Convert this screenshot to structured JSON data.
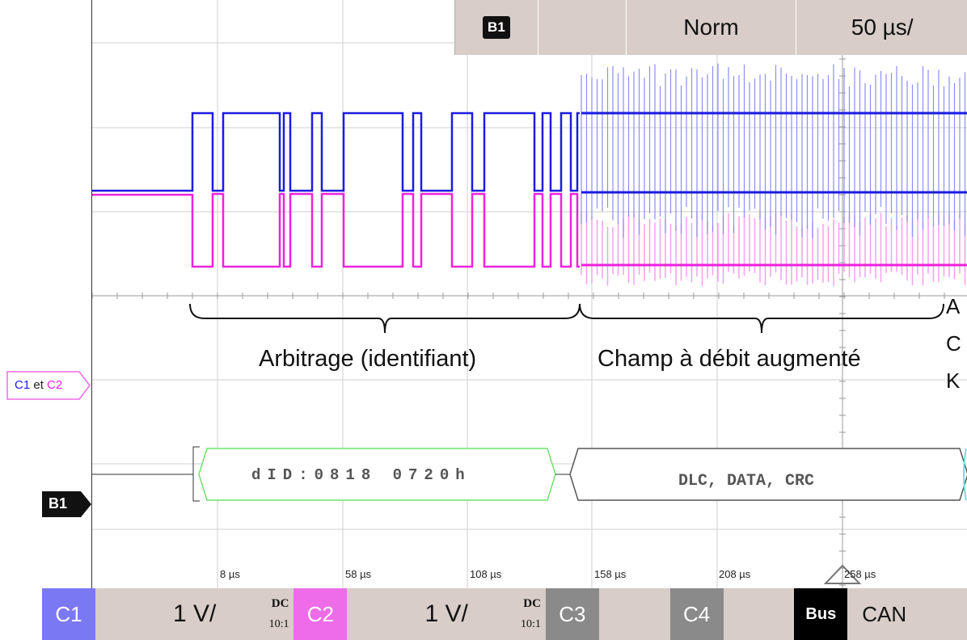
{
  "top_bar": {
    "trigger_source": "B1",
    "empty": "",
    "trigger_mode": "Norm",
    "timebase": "50 µs/"
  },
  "side_label": {
    "c1": "C1",
    "et": "et",
    "c2": "C2"
  },
  "bus_marker": "B1",
  "annotations": {
    "arbitration": "Arbitrage (identifiant)",
    "data_phase": "Champ à débit augmenté",
    "ack": [
      "A",
      "C",
      "K"
    ]
  },
  "decode": {
    "frame_id": "dID:0818 0720h",
    "data_fields": "DLC, DATA, CRC"
  },
  "time_labels": [
    "8 µs",
    "58 µs",
    "108 µs",
    "158 µs",
    "208 µs",
    "258 µs"
  ],
  "channels": [
    {
      "tag": "C1",
      "scale": "1 V/",
      "coupling": "DC",
      "probe": "10:1",
      "color": "#7b78f4"
    },
    {
      "tag": "C2",
      "scale": "1 V/",
      "coupling": "DC",
      "probe": "10:1",
      "color": "#ee6ce8"
    },
    {
      "tag": "C3",
      "scale": "",
      "color": "#8a8a8a"
    },
    {
      "tag": "C4",
      "scale": "",
      "color": "#8a8a8a"
    }
  ],
  "bus": {
    "tag": "Bus",
    "protocol": "CAN"
  },
  "colors": {
    "c1_trace": "#1c1ce0",
    "c2_trace": "#ee22dd",
    "decode_id_border": "#6fe06f",
    "decode_data_border": "#555555",
    "bar_background": "#d8cdc8"
  }
}
